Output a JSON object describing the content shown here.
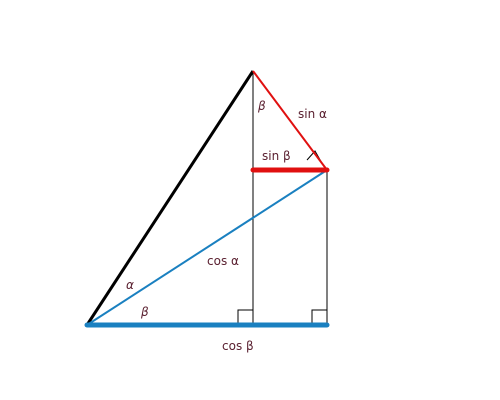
{
  "labels": {
    "top_angle": "β",
    "sin_alpha": "sin α",
    "sin_beta": "sin β",
    "cos_alpha": "cos α",
    "alpha": "α",
    "beta": "β",
    "cos_beta": "cos β"
  }
}
